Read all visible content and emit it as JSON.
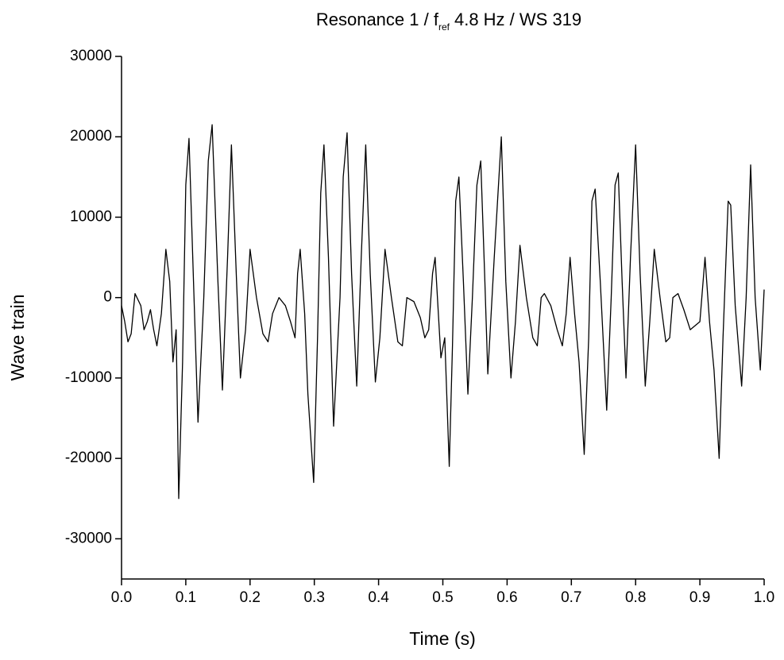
{
  "chart_data": {
    "type": "line",
    "title": "Resonance 1 / f",
    "title_subscript": "ref",
    "title_suffix": "4.8 Hz / WS 319",
    "x_label": "Time (s)",
    "y_label": "Wave train",
    "color": "#000000",
    "xlim": [
      0,
      1
    ],
    "ylim": [
      -35000,
      30000
    ],
    "xticks": [
      {
        "value": 0,
        "label": "0.0"
      },
      0.1,
      0.2,
      0.3,
      0.4,
      0.5,
      0.6,
      0.7,
      0.8,
      0.9,
      {
        "value": 1,
        "label": "1.0"
      }
    ],
    "yticks": [
      -30000,
      -20000,
      -10000,
      0,
      10000,
      20000,
      30000
    ],
    "x": [
      0,
      0.005,
      0.01,
      0.015,
      0.021,
      0.03,
      0.035,
      0.04,
      0.045,
      0.05,
      0.055,
      0.062,
      0.069,
      0.075,
      0.08,
      0.085,
      0.089,
      0.095,
      0.1,
      0.105,
      0.112,
      0.119,
      0.128,
      0.135,
      0.141,
      0.15,
      0.157,
      0.165,
      0.171,
      0.179,
      0.185,
      0.193,
      0.2,
      0.21,
      0.22,
      0.228,
      0.235,
      0.245,
      0.255,
      0.263,
      0.27,
      0.274,
      0.278,
      0.285,
      0.29,
      0.299,
      0.305,
      0.31,
      0.315,
      0.322,
      0.33,
      0.34,
      0.345,
      0.351,
      0.358,
      0.366,
      0.373,
      0.38,
      0.387,
      0.395,
      0.402,
      0.41,
      0.42,
      0.43,
      0.437,
      0.444,
      0.455,
      0.465,
      0.472,
      0.478,
      0.484,
      0.488,
      0.497,
      0.503,
      0.51,
      0.515,
      0.52,
      0.525,
      0.532,
      0.539,
      0.546,
      0.553,
      0.559,
      0.565,
      0.57,
      0.58,
      0.591,
      0.598,
      0.606,
      0.613,
      0.62,
      0.63,
      0.64,
      0.647,
      0.653,
      0.658,
      0.668,
      0.678,
      0.686,
      0.692,
      0.698,
      0.705,
      0.712,
      0.72,
      0.727,
      0.732,
      0.737,
      0.745,
      0.755,
      0.762,
      0.768,
      0.773,
      0.779,
      0.785,
      0.792,
      0.8,
      0.807,
      0.815,
      0.822,
      0.829,
      0.838,
      0.847,
      0.853,
      0.858,
      0.866,
      0.875,
      0.885,
      0.9,
      0.908,
      0.915,
      0.922,
      0.93,
      0.936,
      0.944,
      0.948,
      0.955,
      0.965,
      0.972,
      0.979,
      0.986,
      0.994,
      1
    ],
    "values": [
      -1000,
      -3000,
      -5500,
      -4500,
      500,
      -1000,
      -4000,
      -3000,
      -1500,
      -4000,
      -6000,
      -2000,
      6000,
      2000,
      -8000,
      -4000,
      -25000,
      -8000,
      14000,
      19800,
      2000,
      -15500,
      0,
      17000,
      21500,
      2000,
      -11500,
      5000,
      19000,
      2000,
      -10000,
      -4000,
      6000,
      0,
      -4500,
      -5500,
      -2000,
      0,
      -1000,
      -3000,
      -5000,
      3000,
      6000,
      -2000,
      -12000,
      -23000,
      -5000,
      13000,
      19000,
      5000,
      -16000,
      0,
      15000,
      20500,
      3000,
      -11000,
      5000,
      19000,
      3000,
      -10500,
      -5000,
      6000,
      0,
      -5500,
      -6000,
      0,
      -500,
      -2500,
      -5000,
      -4000,
      3000,
      5000,
      -7500,
      -5000,
      -21000,
      -6000,
      12000,
      15000,
      2000,
      -12000,
      0,
      14000,
      17000,
      3000,
      -9500,
      5000,
      20000,
      2000,
      -10000,
      -3000,
      6500,
      0,
      -5000,
      -6000,
      0,
      500,
      -1000,
      -4000,
      -6000,
      -2000,
      5000,
      -2000,
      -8000,
      -19500,
      -5000,
      12000,
      13500,
      2000,
      -14000,
      0,
      14000,
      15500,
      2000,
      -10000,
      5000,
      19000,
      3000,
      -11000,
      -3000,
      6000,
      0,
      -5500,
      -5000,
      0,
      500,
      -1500,
      -4000,
      -3000,
      5000,
      -3000,
      -9000,
      -20000,
      -5000,
      12000,
      11500,
      -1000,
      -11000,
      0,
      16500,
      0,
      -9000,
      1000
    ]
  }
}
